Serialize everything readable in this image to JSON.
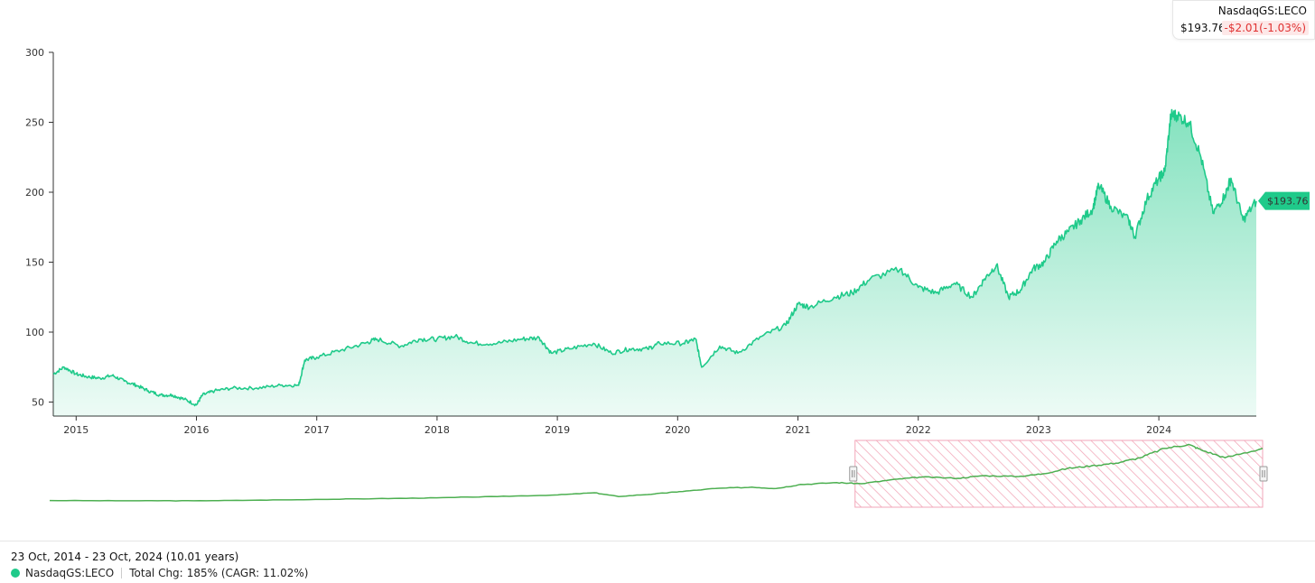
{
  "quote": {
    "symbol": "NasdaqGS:LECO",
    "price": "$193.76",
    "change": "-$2.01(-1.03%)"
  },
  "footer": {
    "range": "23 Oct, 2014 - 23 Oct, 2024 (10.01 years)",
    "legend_name": "NasdaqGS:LECO",
    "total_change_label": "Total Chg:",
    "total_change_value": "185% (CAGR: 11.02%)"
  },
  "colors": {
    "line": "#1fca8a",
    "area_top": "#1fca8a",
    "price_tag": "#1fca8a",
    "negative": "#e03131",
    "navigator_line": "#4caf50",
    "navigator_hatch": "#f2a6b8"
  },
  "chart_data": {
    "type": "area",
    "title": "",
    "xlabel": "",
    "ylabel": "",
    "ylim": [
      40,
      300
    ],
    "xlim": [
      2014.81,
      2024.81
    ],
    "grid": false,
    "yticks": [
      50,
      100,
      150,
      200,
      250,
      300
    ],
    "ytick_labels": [
      "50",
      "100",
      "150",
      "200",
      "250",
      "300"
    ],
    "xticks": [
      2015,
      2016,
      2017,
      2018,
      2019,
      2020,
      2021,
      2022,
      2023,
      2024
    ],
    "xtick_labels": [
      "2015",
      "2016",
      "2017",
      "2018",
      "2019",
      "2020",
      "2021",
      "2022",
      "2023",
      "2024"
    ],
    "last_value_label": "$193.76",
    "series": [
      {
        "x": [
          2014.81,
          2014.9,
          2015.0,
          2015.1,
          2015.2,
          2015.3,
          2015.4,
          2015.5,
          2015.6,
          2015.7,
          2015.8,
          2015.9,
          2016.0,
          2016.05,
          2016.15,
          2016.3,
          2016.5,
          2016.7,
          2016.85,
          2016.9,
          2017.0,
          2017.2,
          2017.4,
          2017.5,
          2017.7,
          2017.85,
          2018.0,
          2018.15,
          2018.3,
          2018.5,
          2018.7,
          2018.85,
          2018.95,
          2019.1,
          2019.3,
          2019.45,
          2019.6,
          2019.75,
          2019.85,
          2020.05,
          2020.15,
          2020.2,
          2020.35,
          2020.5,
          2020.7,
          2020.9,
          2021.0,
          2021.1,
          2021.3,
          2021.45,
          2021.6,
          2021.85,
          2022.0,
          2022.15,
          2022.3,
          2022.45,
          2022.55,
          2022.65,
          2022.75,
          2022.85,
          2022.95,
          2023.05,
          2023.15,
          2023.25,
          2023.35,
          2023.45,
          2023.5,
          2023.6,
          2023.75,
          2023.8,
          2023.9,
          2024.0,
          2024.05,
          2024.1,
          2024.15,
          2024.25,
          2024.35,
          2024.45,
          2024.55,
          2024.6,
          2024.7,
          2024.81
        ],
        "values": [
          70,
          75,
          70,
          68,
          67,
          69,
          65,
          62,
          58,
          55,
          55,
          52,
          48,
          55,
          58,
          60,
          60,
          62,
          62,
          80,
          82,
          87,
          92,
          95,
          90,
          95,
          95,
          97,
          92,
          92,
          95,
          96,
          85,
          88,
          92,
          85,
          88,
          88,
          92,
          92,
          95,
          75,
          90,
          85,
          97,
          105,
          120,
          118,
          125,
          128,
          138,
          145,
          132,
          128,
          135,
          125,
          138,
          148,
          125,
          130,
          145,
          150,
          165,
          172,
          180,
          188,
          205,
          190,
          180,
          168,
          195,
          210,
          215,
          255,
          255,
          250,
          225,
          185,
          198,
          210,
          180,
          193.76
        ]
      }
    ],
    "navigator": {
      "x": [
        2014.81,
        2015.5,
        2016.0,
        2016.5,
        2017.0,
        2017.5,
        2018.0,
        2018.5,
        2019.0,
        2019.3,
        2019.5,
        2019.8,
        2020.0,
        2020.3,
        2020.6,
        2020.8,
        2021.0,
        2021.3,
        2021.5,
        2021.8,
        2022.0,
        2022.3,
        2022.5,
        2022.8,
        2023.0,
        2023.2,
        2023.4,
        2023.6,
        2023.8,
        2024.0,
        2024.2,
        2024.3,
        2024.5,
        2024.81
      ],
      "values": [
        45,
        44,
        44,
        46,
        49,
        52,
        55,
        60,
        66,
        74,
        60,
        70,
        78,
        90,
        95,
        90,
        105,
        112,
        108,
        125,
        133,
        128,
        138,
        135,
        145,
        165,
        175,
        185,
        205,
        240,
        255,
        235,
        205,
        240
      ],
      "selection_start": 2021.45,
      "selection_end": 2024.81
    }
  }
}
